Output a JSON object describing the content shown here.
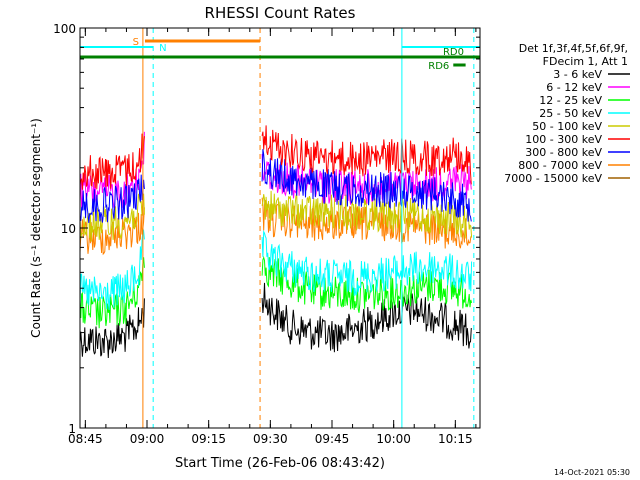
{
  "chart_data": {
    "type": "line",
    "title": "RHESSI Count Rates",
    "xlabel": "Start Time (26-Feb-06 08:43:42)",
    "ylabel": "Count Rate (s⁻¹ detector segment⁻¹)",
    "yscale": "log",
    "ylim": [
      1,
      100
    ],
    "xlim": [
      "08:43:42",
      "10:21:00"
    ],
    "grid": false,
    "x_ticks": [
      "08:45",
      "09:00",
      "09:15",
      "09:30",
      "09:45",
      "10:00",
      "10:15"
    ],
    "y_ticks": [
      "1",
      "10",
      "100"
    ],
    "legend": {
      "placement": "right",
      "header": [
        "Det 1f,3f,4f,5f,6f,9f,",
        "FDecim 1, Att 1"
      ]
    },
    "series": [
      {
        "name": "3 - 6 keV",
        "color": "#000000",
        "x": [
          "08:43:42",
          "08:50",
          "08:55",
          "08:58",
          "08:59:30",
          "09:00"
        ],
        "y": [
          2.8,
          2.7,
          2.9,
          3.3,
          4.0,
          null
        ],
        "x2": [
          "09:28",
          "09:30",
          "09:35",
          "09:40",
          "09:45",
          "09:50",
          "09:55",
          "10:00",
          "10:05",
          "10:10",
          "10:15",
          "10:19"
        ],
        "y2": [
          4.5,
          4.0,
          3.2,
          3.0,
          2.9,
          3.1,
          3.4,
          3.8,
          3.9,
          3.6,
          3.3,
          3.0
        ]
      },
      {
        "name": "6 - 12 keV",
        "color": "#ff00ff",
        "x": [
          "08:43:42",
          "08:50",
          "08:55",
          "08:58",
          "08:59:30"
        ],
        "y": [
          15.5,
          15.0,
          15.5,
          18,
          26
        ],
        "x2": [
          "09:28",
          "09:30",
          "09:40",
          "09:50",
          "10:00",
          "10:10",
          "10:15",
          "10:19"
        ],
        "y2": [
          20,
          18,
          16.5,
          16,
          16,
          16.5,
          17,
          16.5
        ]
      },
      {
        "name": "12 - 25 keV",
        "color": "#00ff00",
        "x": [
          "08:43:42",
          "08:50",
          "08:55",
          "08:58",
          "08:59:30"
        ],
        "y": [
          3.9,
          3.7,
          4.0,
          5.0,
          7.5
        ],
        "x2": [
          "09:28",
          "09:30",
          "09:40",
          "09:50",
          "10:00",
          "10:10",
          "10:19"
        ],
        "y2": [
          7.0,
          6.0,
          4.8,
          4.6,
          4.8,
          5.2,
          4.7
        ]
      },
      {
        "name": "25 - 50 keV",
        "color": "#00ffff",
        "x": [
          "08:43:42",
          "08:50",
          "08:55",
          "08:58",
          "08:59:30"
        ],
        "y": [
          4.8,
          4.6,
          5.0,
          6.0,
          9.0
        ],
        "x2": [
          "09:28",
          "09:30",
          "09:40",
          "09:50",
          "10:00",
          "10:10",
          "10:19"
        ],
        "y2": [
          8.0,
          7.0,
          5.8,
          5.6,
          6.0,
          6.4,
          5.6
        ]
      },
      {
        "name": "50 - 100 keV",
        "color": "#cccc00",
        "x": [
          "08:43:42",
          "08:50",
          "08:55",
          "08:58",
          "08:59:30"
        ],
        "y": [
          10.5,
          10.5,
          11,
          12,
          13
        ],
        "x2": [
          "09:28",
          "09:30",
          "09:40",
          "09:50",
          "10:00",
          "10:10",
          "10:19"
        ],
        "y2": [
          13.5,
          12.5,
          12,
          12,
          11.5,
          11.5,
          10.5
        ]
      },
      {
        "name": "100 - 300 keV",
        "color": "#ff0000",
        "x": [
          "08:43:42",
          "08:50",
          "08:55",
          "08:58",
          "08:59:30"
        ],
        "y": [
          19,
          19,
          19.5,
          21,
          28
        ],
        "x2": [
          "09:28",
          "09:30",
          "09:40",
          "09:50",
          "10:00",
          "10:10",
          "10:15",
          "10:19"
        ],
        "y2": [
          29,
          26,
          23,
          22,
          23,
          22,
          24,
          20
        ]
      },
      {
        "name": "300 - 800 keV",
        "color": "#0000ff",
        "x": [
          "08:43:42",
          "08:50",
          "08:55",
          "08:58",
          "08:59:30"
        ],
        "y": [
          13,
          13,
          13.5,
          15,
          17
        ],
        "x2": [
          "09:28",
          "09:30",
          "09:40",
          "09:50",
          "10:00",
          "10:10",
          "10:15",
          "10:19"
        ],
        "y2": [
          21,
          19,
          16.5,
          15.5,
          15.5,
          15,
          14,
          13
        ]
      },
      {
        "name": "800 - 7000 keV",
        "color": "#ff8000",
        "x": [
          "08:43:42",
          "08:50",
          "08:55",
          "08:58",
          "08:59:30"
        ],
        "y": [
          9,
          9,
          9.5,
          10,
          12
        ],
        "x2": [
          "09:28",
          "09:30",
          "09:40",
          "09:50",
          "10:00",
          "10:10",
          "10:19"
        ],
        "y2": [
          12,
          11,
          10.5,
          10.5,
          10.5,
          10,
          9
        ]
      },
      {
        "name": "7000 - 15000 keV",
        "color": "#a06000",
        "x": [],
        "y": []
      }
    ],
    "annotations": [
      {
        "label": "S",
        "color": "#ff8000",
        "style": "bar",
        "x_start": "08:59:30",
        "x_end": "09:27:30"
      },
      {
        "label": "N",
        "color": "#00ffff",
        "style": "bar",
        "x_start": "08:43:42",
        "x_end": "09:01:30"
      },
      {
        "label": "",
        "color": "#00ffff",
        "style": "bar",
        "x_start": "10:02:00",
        "x_end": "10:21:00"
      },
      {
        "label": "RD0",
        "color": "#008000",
        "style": "bar",
        "x_start": "08:43:42",
        "x_end": "10:21:00"
      },
      {
        "label": "RD6",
        "color": "#008000",
        "style": "bar",
        "x_start": "10:14:30",
        "x_end": "10:17:30"
      }
    ],
    "markers": [
      {
        "x": "08:43:42",
        "color": "#00ffff",
        "style": "solid"
      },
      {
        "x": "08:59:00",
        "color": "#ff8000",
        "style": "solid"
      },
      {
        "x": "09:01:30",
        "color": "#00ffff",
        "style": "dashed"
      },
      {
        "x": "09:27:30",
        "color": "#ff8000",
        "style": "dashed"
      },
      {
        "x": "10:02:00",
        "color": "#00ffff",
        "style": "solid"
      },
      {
        "x": "10:19:30",
        "color": "#00ffff",
        "style": "dashed"
      }
    ],
    "footer": "14-Oct-2021 05:30"
  }
}
